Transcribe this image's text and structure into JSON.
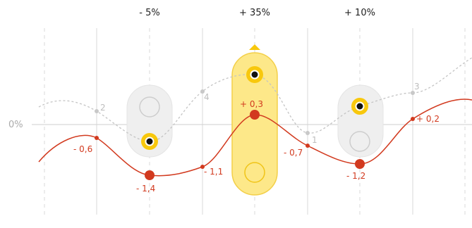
{
  "axis": {
    "zero_label": "0%"
  },
  "changes": [
    {
      "label": "- 5%"
    },
    {
      "label": "+ 35%"
    },
    {
      "label": "+ 10%"
    }
  ],
  "colors": {
    "red": "#d23a1f",
    "grey_line": "#c4c4c4",
    "yellow": "#f8c80d",
    "yellow_fill": "#fde889",
    "pill_grey": "#efefef",
    "grid": "#d6d6d6"
  },
  "red_series_labels": [
    "- 0,6",
    "- 1,4",
    "- 1,1",
    "+ 0,3",
    "- 0,7",
    "- 1,2",
    "+ 0,2"
  ],
  "grey_series_labels": [
    "2",
    "4",
    "1",
    "3"
  ],
  "sliders": [
    {
      "state": "inactive",
      "value": -0.6
    },
    {
      "state": "active",
      "value": 0.9
    },
    {
      "state": "inactive",
      "value": 0.5
    }
  ]
}
